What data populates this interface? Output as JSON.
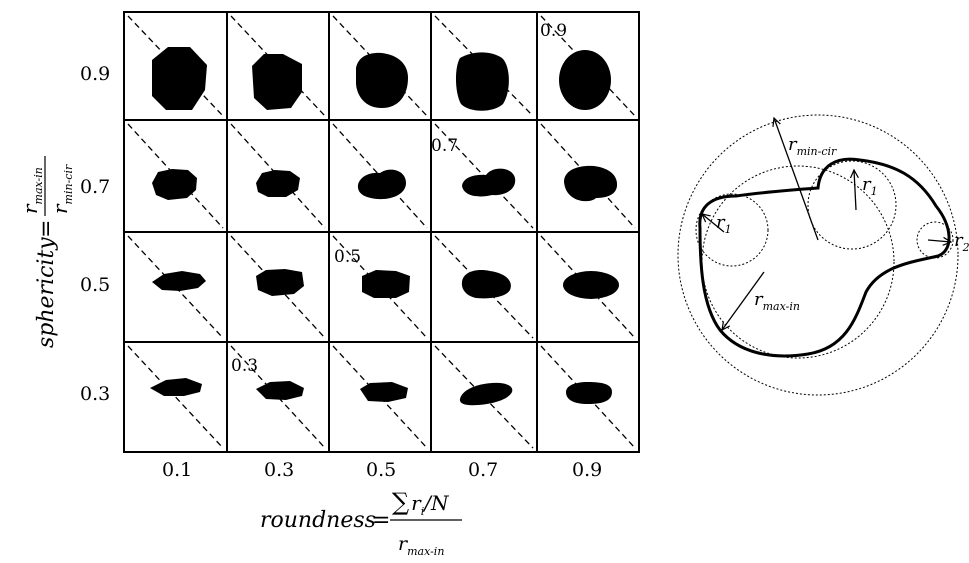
{
  "roundness_ticks": [
    "0.1",
    "0.3",
    "0.5",
    "0.7",
    "0.9"
  ],
  "sphericity_ticks": [
    "0.9",
    "0.7",
    "0.5",
    "0.3"
  ],
  "y_axis": {
    "word": "sphericity",
    "num_r": "r",
    "num_sub": "max-in",
    "den_r": "r",
    "den_sub": "min-cir"
  },
  "x_axis": {
    "word": "roundness",
    "num_sum": "∑",
    "num_r": "r",
    "num_i": "i",
    "num_rest": "/N",
    "den_r": "r",
    "den_sub": "max-in"
  },
  "cell_labels": [
    {
      "row": 0,
      "col": 4,
      "text": "0.9"
    },
    {
      "row": 1,
      "col": 3,
      "text": "0.7"
    },
    {
      "row": 2,
      "col": 2,
      "text": "0.5"
    },
    {
      "row": 3,
      "col": 1,
      "text": "0.3"
    }
  ],
  "right_diagram": {
    "r_min_cir": "r",
    "r_min_cir_sub": "min-cir",
    "r1_left": "r",
    "r1_left_sub": "1",
    "r1_top": "r",
    "r1_top_sub": "1",
    "r2": "r",
    "r2_sub": "2",
    "r_max_in": "r",
    "r_max_in_sub": "max-in"
  }
}
